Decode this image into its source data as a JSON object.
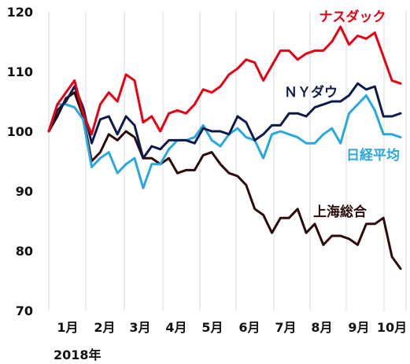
{
  "chart_data": {
    "type": "line",
    "year_label": "2018年",
    "months": [
      "1月",
      "2月",
      "3月",
      "4月",
      "5月",
      "6月",
      "7月",
      "8月",
      "9月",
      "10月"
    ],
    "ylim": [
      70,
      120
    ],
    "yticks": [
      70,
      80,
      90,
      100,
      110,
      120
    ],
    "grid": "vertical",
    "series": [
      {
        "name": "ナスダック",
        "color": "#e60012",
        "values": [
          100,
          104.5,
          106.5,
          108.5,
          103,
          99.5,
          104.5,
          106.5,
          105,
          109.5,
          108.5,
          101.5,
          102.5,
          100,
          103,
          103.5,
          103,
          104.5,
          107,
          106.5,
          107.5,
          109.5,
          110.5,
          112,
          111.5,
          108.5,
          111,
          113.5,
          113.5,
          112,
          113,
          113.5,
          113.5,
          115,
          117.5,
          114.5,
          116,
          115.5,
          116.5,
          112.5,
          108.5,
          108
        ]
      },
      {
        "name": "ＮＹダウ",
        "color": "#0d1b4b",
        "values": [
          100,
          103.5,
          105,
          107.5,
          104,
          98,
          102,
          102.5,
          99.5,
          102.5,
          101,
          95.5,
          97.5,
          97,
          98.5,
          98.5,
          98.5,
          98,
          100.5,
          100,
          100,
          99.5,
          102.5,
          101.5,
          98.5,
          99.5,
          101,
          101,
          103,
          103,
          102.5,
          104,
          104.5,
          105,
          105,
          106,
          108,
          107,
          107.5,
          102.5,
          102.5,
          103
        ]
      },
      {
        "name": "日経平均",
        "color": "#29a8df",
        "values": [
          100,
          104.5,
          104.5,
          104,
          102,
          94,
          95.5,
          96.5,
          93,
          94.5,
          95.5,
          90.5,
          94.5,
          94.5,
          97,
          98.5,
          98.5,
          99,
          101,
          98.5,
          97.5,
          99.5,
          100.5,
          99,
          98.5,
          95.5,
          99.5,
          100,
          99.5,
          99,
          98,
          98,
          99.5,
          100.5,
          98,
          103,
          104.5,
          106,
          103.5,
          99.5,
          99.5,
          99
        ]
      },
      {
        "name": "上海総合",
        "color": "#2d0a0a",
        "values": [
          100,
          102.5,
          105.5,
          106.5,
          102.5,
          95,
          96.5,
          99.5,
          98.5,
          100,
          99,
          95.5,
          95.5,
          94.5,
          95.5,
          93,
          93.5,
          93.5,
          96,
          96.5,
          94.5,
          93,
          92.5,
          91,
          87,
          86,
          83,
          85.5,
          85.5,
          87,
          83,
          84.5,
          81,
          82.5,
          82.5,
          82,
          81,
          84.5,
          84.5,
          85.5,
          79,
          77
        ]
      }
    ]
  }
}
